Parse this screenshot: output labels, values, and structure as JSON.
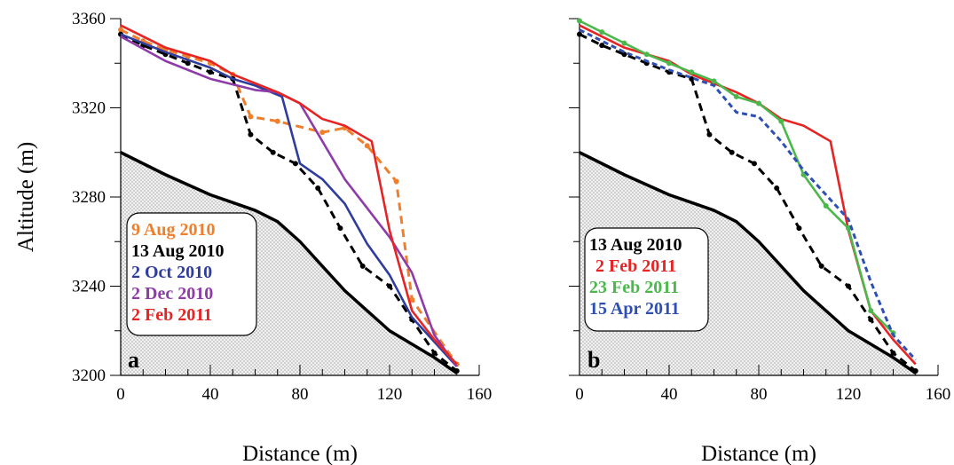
{
  "chart_data": [
    {
      "type": "line",
      "panel_label": "a",
      "xlabel": "Distance (m)",
      "ylabel": "Altitude (m)",
      "xlim": [
        0,
        160
      ],
      "ylim": [
        3200,
        3360
      ],
      "xticks": [
        0,
        40,
        80,
        120,
        160
      ],
      "yticks": [
        3200,
        3240,
        3280,
        3320,
        3360
      ],
      "grid": false,
      "legend_position": "lower-left",
      "bed": {
        "x": [
          0,
          20,
          40,
          60,
          70,
          80,
          100,
          120,
          140,
          150
        ],
        "y": [
          3300,
          3290,
          3281,
          3274,
          3269,
          3260,
          3238,
          3220,
          3208,
          3201
        ]
      },
      "series": [
        {
          "name": "9 Aug 2010",
          "color": "#F07F2D",
          "dash": true,
          "markers": true,
          "x": [
            0,
            10,
            20,
            30,
            40,
            50,
            58,
            70,
            90,
            100,
            110,
            123,
            130,
            150
          ],
          "y": [
            3355,
            3350,
            3346,
            3343,
            3340,
            3335,
            3316,
            3314,
            3309,
            3311,
            3303,
            3287,
            3234,
            3205
          ]
        },
        {
          "name": "13 Aug 2010",
          "color": "#000000",
          "dash": true,
          "markers": true,
          "x": [
            0,
            10,
            20,
            30,
            40,
            50,
            58,
            68,
            78,
            88,
            98,
            108,
            120,
            130,
            140,
            150
          ],
          "y": [
            3353,
            3348,
            3344,
            3340,
            3336,
            3333,
            3308,
            3300,
            3295,
            3284,
            3266,
            3249,
            3240,
            3225,
            3210,
            3202
          ]
        },
        {
          "name": "2 Oct 2010",
          "color": "#2E3D9E",
          "dash": false,
          "markers": false,
          "x": [
            0,
            20,
            40,
            50,
            60,
            72,
            80,
            90,
            100,
            110,
            120,
            130,
            150
          ],
          "y": [
            3353,
            3345,
            3338,
            3333,
            3330,
            3325,
            3295,
            3288,
            3277,
            3259,
            3245,
            3226,
            3204
          ]
        },
        {
          "name": "2 Dec 2010",
          "color": "#8E3CA8",
          "dash": false,
          "markers": false,
          "x": [
            0,
            20,
            40,
            60,
            70,
            80,
            90,
            100,
            110,
            120,
            130,
            140,
            150
          ],
          "y": [
            3352,
            3341,
            3333,
            3328,
            3327,
            3322,
            3305,
            3288,
            3275,
            3262,
            3246,
            3218,
            3204
          ]
        },
        {
          "name": "2 Feb 2011",
          "color": "#E62424",
          "dash": false,
          "markers": false,
          "x": [
            0,
            20,
            40,
            50,
            60,
            70,
            80,
            90,
            100,
            112,
            120,
            130,
            140,
            150
          ],
          "y": [
            3357,
            3347,
            3341,
            3335,
            3331,
            3327,
            3322,
            3315,
            3312,
            3305,
            3265,
            3229,
            3216,
            3205
          ]
        }
      ]
    },
    {
      "type": "line",
      "panel_label": "b",
      "xlabel": "Distance (m)",
      "ylabel": "",
      "xlim": [
        0,
        160
      ],
      "ylim": [
        3200,
        3360
      ],
      "xticks": [
        0,
        40,
        80,
        120,
        160
      ],
      "yticks": [
        3200,
        3240,
        3280,
        3320,
        3360
      ],
      "grid": false,
      "legend_position": "lower-left",
      "bed": {
        "x": [
          0,
          20,
          40,
          60,
          70,
          80,
          100,
          120,
          140,
          150
        ],
        "y": [
          3300,
          3290,
          3281,
          3274,
          3269,
          3260,
          3238,
          3220,
          3208,
          3201
        ]
      },
      "series": [
        {
          "name": "13 Aug 2010",
          "color": "#000000",
          "dash": true,
          "markers": true,
          "x": [
            0,
            10,
            20,
            30,
            40,
            50,
            58,
            68,
            78,
            88,
            98,
            108,
            120,
            130,
            140,
            150
          ],
          "y": [
            3353,
            3348,
            3344,
            3340,
            3336,
            3333,
            3308,
            3300,
            3295,
            3284,
            3266,
            3249,
            3240,
            3225,
            3210,
            3202
          ]
        },
        {
          "name": "2 Feb 2011",
          "color": "#E62424",
          "dash": false,
          "markers": false,
          "x": [
            0,
            20,
            40,
            50,
            60,
            70,
            80,
            90,
            100,
            112,
            120,
            130,
            140,
            150
          ],
          "y": [
            3357,
            3347,
            3341,
            3335,
            3331,
            3327,
            3322,
            3315,
            3312,
            3305,
            3265,
            3229,
            3216,
            3205
          ]
        },
        {
          "name": "23 Feb 2011",
          "color": "#4CB84C",
          "dash": false,
          "markers": true,
          "x": [
            0,
            10,
            20,
            30,
            40,
            50,
            60,
            70,
            80,
            90,
            100,
            110,
            120,
            130,
            140
          ],
          "y": [
            3359,
            3354,
            3349,
            3344,
            3340,
            3336,
            3332,
            3325,
            3322,
            3314,
            3290,
            3276,
            3266,
            3229,
            3219
          ]
        },
        {
          "name": "15 Apr 2011",
          "color": "#2E4FB3",
          "dash": true,
          "markers": false,
          "x": [
            0,
            20,
            40,
            60,
            70,
            80,
            90,
            100,
            110,
            120,
            130,
            140,
            150
          ],
          "y": [
            3355,
            3345,
            3337,
            3330,
            3318,
            3316,
            3305,
            3292,
            3281,
            3270,
            3242,
            3218,
            3207
          ]
        }
      ]
    }
  ]
}
